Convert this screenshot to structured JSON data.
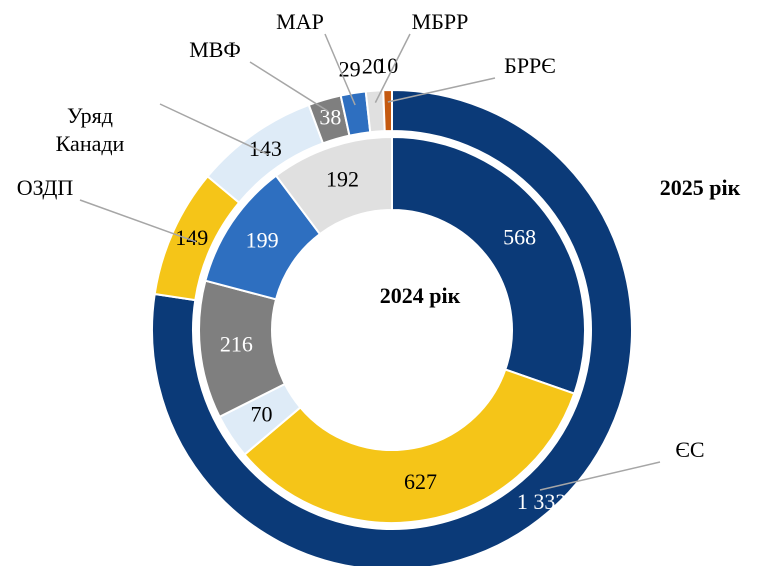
{
  "chart_data": {
    "type": "donut",
    "categories": [
      "ЄС",
      "ОЗДП",
      "Уряд Канади",
      "МВФ",
      "МАР",
      "МБРР",
      "БРРЄ"
    ],
    "colors": [
      "#0b3a78",
      "#f5c518",
      "#deebf7",
      "#7f7f7f",
      "#2e6fc0",
      "#e0e0e0",
      "#c55a11"
    ],
    "series": [
      {
        "name": "2024 рік",
        "values": [
          568,
          627,
          70,
          216,
          199,
          192,
          null
        ]
      },
      {
        "name": "2025 рік",
        "values": [
          1332,
          149,
          143,
          38,
          29,
          20,
          10
        ],
        "value_labels": [
          "1 332",
          "149",
          "143",
          "38",
          "29",
          "20",
          "10"
        ]
      }
    ]
  }
}
